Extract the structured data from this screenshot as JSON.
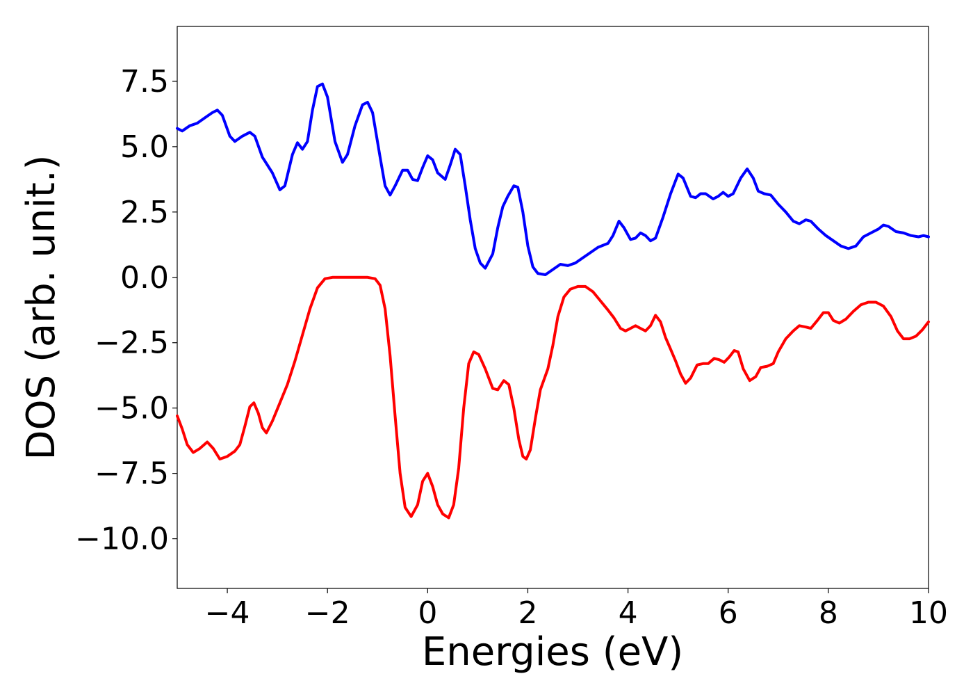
{
  "chart_data": {
    "type": "line",
    "title": "",
    "xlabel": "Energies (eV)",
    "ylabel": "DOS (arb. unit.)",
    "xlim": [
      -5,
      10
    ],
    "ylim": [
      -11.9,
      9.6
    ],
    "xticks": [
      -4,
      -2,
      0,
      2,
      4,
      6,
      8,
      10
    ],
    "xtick_labels": [
      "−4",
      "−2",
      "0",
      "2",
      "4",
      "6",
      "8",
      "10"
    ],
    "yticks": [
      7.5,
      5.0,
      2.5,
      0.0,
      -2.5,
      -5.0,
      -7.5,
      -10.0
    ],
    "ytick_labels": [
      "7.5",
      "5.0",
      "2.5",
      "0.0",
      "−2.5",
      "−5.0",
      "−7.5",
      "−10.0"
    ],
    "grid": false,
    "legend": "none",
    "series": [
      {
        "color": "#0000ff",
        "points": [
          [
            -5.0,
            5.7
          ],
          [
            -4.9,
            5.6
          ],
          [
            -4.75,
            5.8
          ],
          [
            -4.6,
            5.9
          ],
          [
            -4.45,
            6.1
          ],
          [
            -4.3,
            6.3
          ],
          [
            -4.2,
            6.4
          ],
          [
            -4.1,
            6.2
          ],
          [
            -3.95,
            5.4
          ],
          [
            -3.85,
            5.2
          ],
          [
            -3.7,
            5.4
          ],
          [
            -3.55,
            5.55
          ],
          [
            -3.45,
            5.4
          ],
          [
            -3.3,
            4.6
          ],
          [
            -3.1,
            4.0
          ],
          [
            -2.95,
            3.35
          ],
          [
            -2.85,
            3.5
          ],
          [
            -2.7,
            4.7
          ],
          [
            -2.6,
            5.15
          ],
          [
            -2.5,
            4.9
          ],
          [
            -2.4,
            5.2
          ],
          [
            -2.3,
            6.4
          ],
          [
            -2.2,
            7.3
          ],
          [
            -2.1,
            7.4
          ],
          [
            -2.0,
            6.9
          ],
          [
            -1.85,
            5.2
          ],
          [
            -1.7,
            4.4
          ],
          [
            -1.6,
            4.7
          ],
          [
            -1.45,
            5.8
          ],
          [
            -1.3,
            6.6
          ],
          [
            -1.2,
            6.7
          ],
          [
            -1.1,
            6.3
          ],
          [
            -0.95,
            4.6
          ],
          [
            -0.85,
            3.5
          ],
          [
            -0.75,
            3.15
          ],
          [
            -0.65,
            3.5
          ],
          [
            -0.5,
            4.1
          ],
          [
            -0.4,
            4.1
          ],
          [
            -0.3,
            3.75
          ],
          [
            -0.2,
            3.7
          ],
          [
            -0.1,
            4.2
          ],
          [
            0.0,
            4.65
          ],
          [
            0.1,
            4.5
          ],
          [
            0.2,
            4.0
          ],
          [
            0.35,
            3.75
          ],
          [
            0.45,
            4.3
          ],
          [
            0.55,
            4.9
          ],
          [
            0.65,
            4.7
          ],
          [
            0.75,
            3.5
          ],
          [
            0.85,
            2.2
          ],
          [
            0.95,
            1.1
          ],
          [
            1.05,
            0.55
          ],
          [
            1.15,
            0.35
          ],
          [
            1.3,
            0.9
          ],
          [
            1.4,
            1.9
          ],
          [
            1.5,
            2.7
          ],
          [
            1.6,
            3.1
          ],
          [
            1.72,
            3.5
          ],
          [
            1.8,
            3.45
          ],
          [
            1.9,
            2.5
          ],
          [
            2.0,
            1.2
          ],
          [
            2.1,
            0.4
          ],
          [
            2.2,
            0.15
          ],
          [
            2.35,
            0.1
          ],
          [
            2.5,
            0.3
          ],
          [
            2.65,
            0.5
          ],
          [
            2.8,
            0.45
          ],
          [
            2.95,
            0.55
          ],
          [
            3.1,
            0.75
          ],
          [
            3.25,
            0.95
          ],
          [
            3.4,
            1.15
          ],
          [
            3.6,
            1.3
          ],
          [
            3.7,
            1.6
          ],
          [
            3.82,
            2.15
          ],
          [
            3.92,
            1.9
          ],
          [
            4.05,
            1.45
          ],
          [
            4.15,
            1.5
          ],
          [
            4.25,
            1.7
          ],
          [
            4.35,
            1.6
          ],
          [
            4.45,
            1.4
          ],
          [
            4.55,
            1.5
          ],
          [
            4.7,
            2.3
          ],
          [
            4.85,
            3.2
          ],
          [
            5.0,
            3.95
          ],
          [
            5.1,
            3.8
          ],
          [
            5.25,
            3.1
          ],
          [
            5.35,
            3.05
          ],
          [
            5.45,
            3.2
          ],
          [
            5.55,
            3.2
          ],
          [
            5.7,
            3.0
          ],
          [
            5.8,
            3.1
          ],
          [
            5.9,
            3.25
          ],
          [
            6.0,
            3.1
          ],
          [
            6.1,
            3.2
          ],
          [
            6.25,
            3.8
          ],
          [
            6.38,
            4.15
          ],
          [
            6.5,
            3.8
          ],
          [
            6.6,
            3.3
          ],
          [
            6.72,
            3.2
          ],
          [
            6.85,
            3.15
          ],
          [
            7.0,
            2.8
          ],
          [
            7.15,
            2.5
          ],
          [
            7.3,
            2.15
          ],
          [
            7.42,
            2.05
          ],
          [
            7.55,
            2.2
          ],
          [
            7.65,
            2.15
          ],
          [
            7.8,
            1.85
          ],
          [
            7.95,
            1.6
          ],
          [
            8.1,
            1.4
          ],
          [
            8.25,
            1.2
          ],
          [
            8.4,
            1.1
          ],
          [
            8.55,
            1.2
          ],
          [
            8.7,
            1.55
          ],
          [
            8.85,
            1.7
          ],
          [
            9.0,
            1.85
          ],
          [
            9.1,
            2.0
          ],
          [
            9.2,
            1.95
          ],
          [
            9.35,
            1.75
          ],
          [
            9.5,
            1.7
          ],
          [
            9.65,
            1.6
          ],
          [
            9.8,
            1.55
          ],
          [
            9.9,
            1.6
          ],
          [
            10.0,
            1.55
          ]
        ]
      },
      {
        "color": "#ff0000",
        "points": [
          [
            -5.0,
            -5.3
          ],
          [
            -4.9,
            -5.8
          ],
          [
            -4.8,
            -6.4
          ],
          [
            -4.68,
            -6.7
          ],
          [
            -4.55,
            -6.55
          ],
          [
            -4.4,
            -6.3
          ],
          [
            -4.28,
            -6.55
          ],
          [
            -4.15,
            -6.95
          ],
          [
            -4.0,
            -6.85
          ],
          [
            -3.85,
            -6.65
          ],
          [
            -3.75,
            -6.4
          ],
          [
            -3.65,
            -5.7
          ],
          [
            -3.55,
            -4.95
          ],
          [
            -3.47,
            -4.8
          ],
          [
            -3.38,
            -5.2
          ],
          [
            -3.3,
            -5.75
          ],
          [
            -3.22,
            -5.95
          ],
          [
            -3.1,
            -5.5
          ],
          [
            -2.95,
            -4.8
          ],
          [
            -2.8,
            -4.1
          ],
          [
            -2.65,
            -3.2
          ],
          [
            -2.5,
            -2.2
          ],
          [
            -2.35,
            -1.2
          ],
          [
            -2.2,
            -0.4
          ],
          [
            -2.05,
            -0.05
          ],
          [
            -1.9,
            0.0
          ],
          [
            -1.5,
            0.0
          ],
          [
            -1.2,
            0.0
          ],
          [
            -1.05,
            -0.05
          ],
          [
            -0.95,
            -0.3
          ],
          [
            -0.85,
            -1.2
          ],
          [
            -0.75,
            -3.0
          ],
          [
            -0.65,
            -5.3
          ],
          [
            -0.55,
            -7.5
          ],
          [
            -0.45,
            -8.8
          ],
          [
            -0.33,
            -9.15
          ],
          [
            -0.2,
            -8.7
          ],
          [
            -0.1,
            -7.8
          ],
          [
            0.0,
            -7.5
          ],
          [
            0.1,
            -8.0
          ],
          [
            0.2,
            -8.7
          ],
          [
            0.3,
            -9.05
          ],
          [
            0.42,
            -9.2
          ],
          [
            0.52,
            -8.7
          ],
          [
            0.62,
            -7.3
          ],
          [
            0.72,
            -5.0
          ],
          [
            0.82,
            -3.3
          ],
          [
            0.92,
            -2.85
          ],
          [
            1.02,
            -2.95
          ],
          [
            1.15,
            -3.5
          ],
          [
            1.3,
            -4.25
          ],
          [
            1.4,
            -4.3
          ],
          [
            1.52,
            -3.95
          ],
          [
            1.62,
            -4.1
          ],
          [
            1.72,
            -5.0
          ],
          [
            1.82,
            -6.2
          ],
          [
            1.9,
            -6.85
          ],
          [
            1.97,
            -6.95
          ],
          [
            2.05,
            -6.6
          ],
          [
            2.15,
            -5.4
          ],
          [
            2.25,
            -4.3
          ],
          [
            2.4,
            -3.5
          ],
          [
            2.5,
            -2.6
          ],
          [
            2.6,
            -1.5
          ],
          [
            2.72,
            -0.75
          ],
          [
            2.85,
            -0.45
          ],
          [
            3.0,
            -0.35
          ],
          [
            3.15,
            -0.35
          ],
          [
            3.3,
            -0.55
          ],
          [
            3.45,
            -0.9
          ],
          [
            3.6,
            -1.25
          ],
          [
            3.72,
            -1.55
          ],
          [
            3.85,
            -1.95
          ],
          [
            3.95,
            -2.05
          ],
          [
            4.05,
            -1.95
          ],
          [
            4.15,
            -1.85
          ],
          [
            4.25,
            -1.95
          ],
          [
            4.35,
            -2.05
          ],
          [
            4.45,
            -1.85
          ],
          [
            4.55,
            -1.45
          ],
          [
            4.65,
            -1.7
          ],
          [
            4.75,
            -2.3
          ],
          [
            4.85,
            -2.75
          ],
          [
            4.95,
            -3.2
          ],
          [
            5.05,
            -3.7
          ],
          [
            5.15,
            -4.05
          ],
          [
            5.25,
            -3.85
          ],
          [
            5.38,
            -3.35
          ],
          [
            5.5,
            -3.3
          ],
          [
            5.6,
            -3.3
          ],
          [
            5.72,
            -3.1
          ],
          [
            5.82,
            -3.15
          ],
          [
            5.92,
            -3.25
          ],
          [
            6.02,
            -3.05
          ],
          [
            6.12,
            -2.8
          ],
          [
            6.2,
            -2.85
          ],
          [
            6.3,
            -3.5
          ],
          [
            6.43,
            -3.95
          ],
          [
            6.55,
            -3.8
          ],
          [
            6.65,
            -3.45
          ],
          [
            6.78,
            -3.4
          ],
          [
            6.9,
            -3.3
          ],
          [
            7.0,
            -2.85
          ],
          [
            7.15,
            -2.35
          ],
          [
            7.3,
            -2.05
          ],
          [
            7.42,
            -1.85
          ],
          [
            7.55,
            -1.9
          ],
          [
            7.65,
            -1.95
          ],
          [
            7.78,
            -1.65
          ],
          [
            7.9,
            -1.35
          ],
          [
            8.0,
            -1.35
          ],
          [
            8.1,
            -1.65
          ],
          [
            8.22,
            -1.75
          ],
          [
            8.35,
            -1.6
          ],
          [
            8.5,
            -1.3
          ],
          [
            8.65,
            -1.05
          ],
          [
            8.8,
            -0.95
          ],
          [
            8.95,
            -0.95
          ],
          [
            9.1,
            -1.1
          ],
          [
            9.25,
            -1.5
          ],
          [
            9.38,
            -2.05
          ],
          [
            9.5,
            -2.35
          ],
          [
            9.62,
            -2.35
          ],
          [
            9.75,
            -2.25
          ],
          [
            9.88,
            -2.0
          ],
          [
            10.0,
            -1.7
          ]
        ]
      }
    ]
  }
}
